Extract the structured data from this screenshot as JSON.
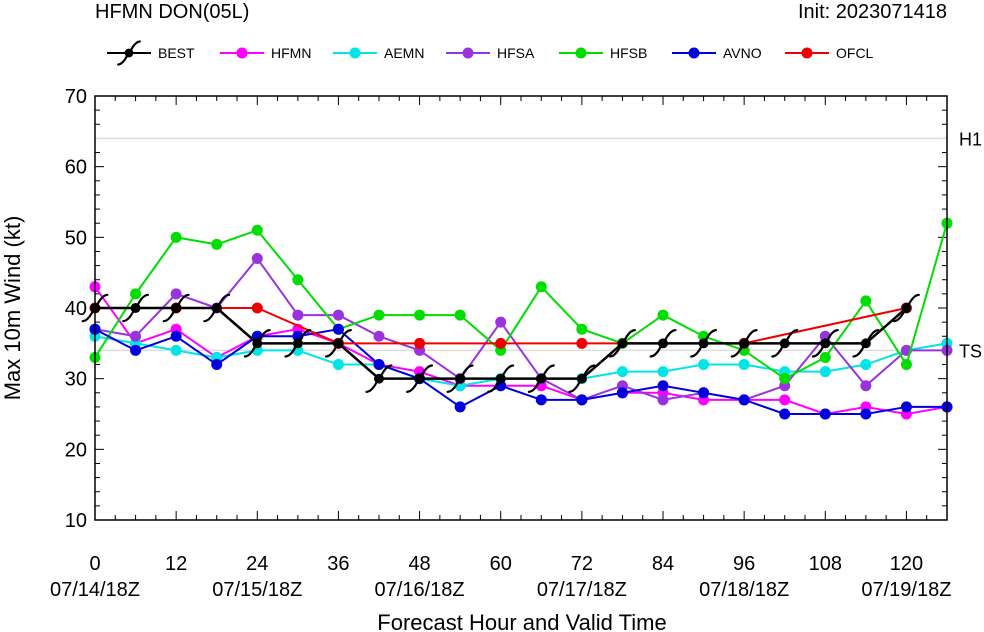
{
  "header": {
    "left_title": "HFMN DON(05L)",
    "right_title": "Init: 2023071418"
  },
  "colors": {
    "BEST": "#000000",
    "HFMN": "#ff00ff",
    "AEMN": "#00e5e5",
    "HFSA": "#9933dd",
    "HFSB": "#00dd00",
    "AVNO": "#0000dd",
    "OFCL": "#ee0000"
  },
  "chart_data": {
    "type": "line",
    "xlabel": "Forecast Hour and Valid Time",
    "ylabel": "Max 10m Wind (kt)",
    "xlim": [
      0,
      126
    ],
    "ylim": [
      10,
      70
    ],
    "x_ticks": [
      0,
      12,
      24,
      36,
      48,
      60,
      72,
      84,
      96,
      108,
      120
    ],
    "x_tick_labels": [
      "0",
      "12",
      "24",
      "36",
      "48",
      "60",
      "72",
      "84",
      "96",
      "108",
      "120"
    ],
    "date_labels": [
      {
        "x": 0,
        "label": "07/14/18Z"
      },
      {
        "x": 24,
        "label": "07/15/18Z"
      },
      {
        "x": 48,
        "label": "07/16/18Z"
      },
      {
        "x": 72,
        "label": "07/17/18Z"
      },
      {
        "x": 96,
        "label": "07/18/18Z"
      },
      {
        "x": 120,
        "label": "07/19/18Z"
      }
    ],
    "y_ticks": [
      10,
      20,
      30,
      40,
      50,
      60,
      70
    ],
    "y_tick_labels": [
      "10",
      "20",
      "30",
      "40",
      "50",
      "60",
      "70"
    ],
    "thresholds": [
      {
        "y": 64,
        "label": "H1"
      },
      {
        "y": 34,
        "label": "TS"
      }
    ],
    "legend_position": "top",
    "series": [
      {
        "name": "HFMN",
        "color": "#ff00ff",
        "x": [
          0,
          6,
          12,
          18,
          24,
          30,
          36,
          42,
          48,
          54,
          60,
          66,
          72,
          78,
          84,
          90,
          96,
          102,
          108,
          114,
          120,
          126
        ],
        "values": [
          43,
          35,
          37,
          33,
          36,
          37,
          35,
          32,
          31,
          29,
          29,
          29,
          27,
          28,
          28,
          27,
          27,
          27,
          25,
          26,
          25,
          26
        ]
      },
      {
        "name": "AEMN",
        "color": "#00e5e5",
        "x": [
          0,
          6,
          12,
          18,
          24,
          30,
          36,
          42,
          48,
          54,
          60,
          66,
          72,
          78,
          84,
          90,
          96,
          102,
          108,
          114,
          120,
          126
        ],
        "values": [
          36,
          35,
          34,
          33,
          34,
          34,
          32,
          32,
          30,
          29,
          30,
          30,
          30,
          31,
          31,
          32,
          32,
          31,
          31,
          32,
          34,
          35
        ]
      },
      {
        "name": "HFSA",
        "color": "#9933dd",
        "x": [
          0,
          6,
          12,
          18,
          24,
          30,
          36,
          42,
          48,
          54,
          60,
          66,
          72,
          78,
          84,
          90,
          96,
          102,
          108,
          114,
          120,
          126
        ],
        "values": [
          37,
          36,
          42,
          40,
          47,
          39,
          39,
          36,
          34,
          30,
          38,
          30,
          27,
          29,
          27,
          28,
          27,
          29,
          36,
          29,
          34,
          34
        ]
      },
      {
        "name": "HFSB",
        "color": "#00dd00",
        "x": [
          0,
          6,
          12,
          18,
          24,
          30,
          36,
          42,
          48,
          54,
          60,
          66,
          72,
          78,
          84,
          90,
          96,
          102,
          108,
          114,
          120,
          126
        ],
        "values": [
          33,
          42,
          50,
          49,
          51,
          44,
          37,
          39,
          39,
          39,
          34,
          43,
          37,
          35,
          39,
          36,
          34,
          30,
          33,
          41,
          32,
          52
        ]
      },
      {
        "name": "AVNO",
        "color": "#0000dd",
        "x": [
          0,
          6,
          12,
          18,
          24,
          30,
          36,
          42,
          48,
          54,
          60,
          66,
          72,
          78,
          84,
          90,
          96,
          102,
          108,
          114,
          120,
          126
        ],
        "values": [
          37,
          34,
          36,
          32,
          36,
          36,
          37,
          32,
          30,
          26,
          29,
          27,
          27,
          28,
          29,
          28,
          27,
          25,
          25,
          25,
          26,
          26
        ]
      },
      {
        "name": "OFCL",
        "color": "#ee0000",
        "x": [
          0,
          12,
          24,
          36,
          48,
          60,
          72,
          96,
          120
        ],
        "values": [
          40,
          40,
          40,
          35,
          35,
          35,
          35,
          35,
          40
        ]
      },
      {
        "name": "BEST",
        "color": "#000000",
        "marker": "hurricane",
        "x": [
          0,
          6,
          12,
          18,
          24,
          30,
          36,
          42,
          48,
          54,
          60,
          66,
          72,
          78,
          84,
          90,
          96,
          102,
          108,
          114,
          120
        ],
        "values": [
          40,
          40,
          40,
          40,
          35,
          35,
          35,
          30,
          30,
          30,
          30,
          30,
          30,
          35,
          35,
          35,
          35,
          35,
          35,
          35,
          40
        ]
      }
    ],
    "legend_order": [
      "BEST",
      "HFMN",
      "AEMN",
      "HFSA",
      "HFSB",
      "AVNO",
      "OFCL"
    ]
  }
}
